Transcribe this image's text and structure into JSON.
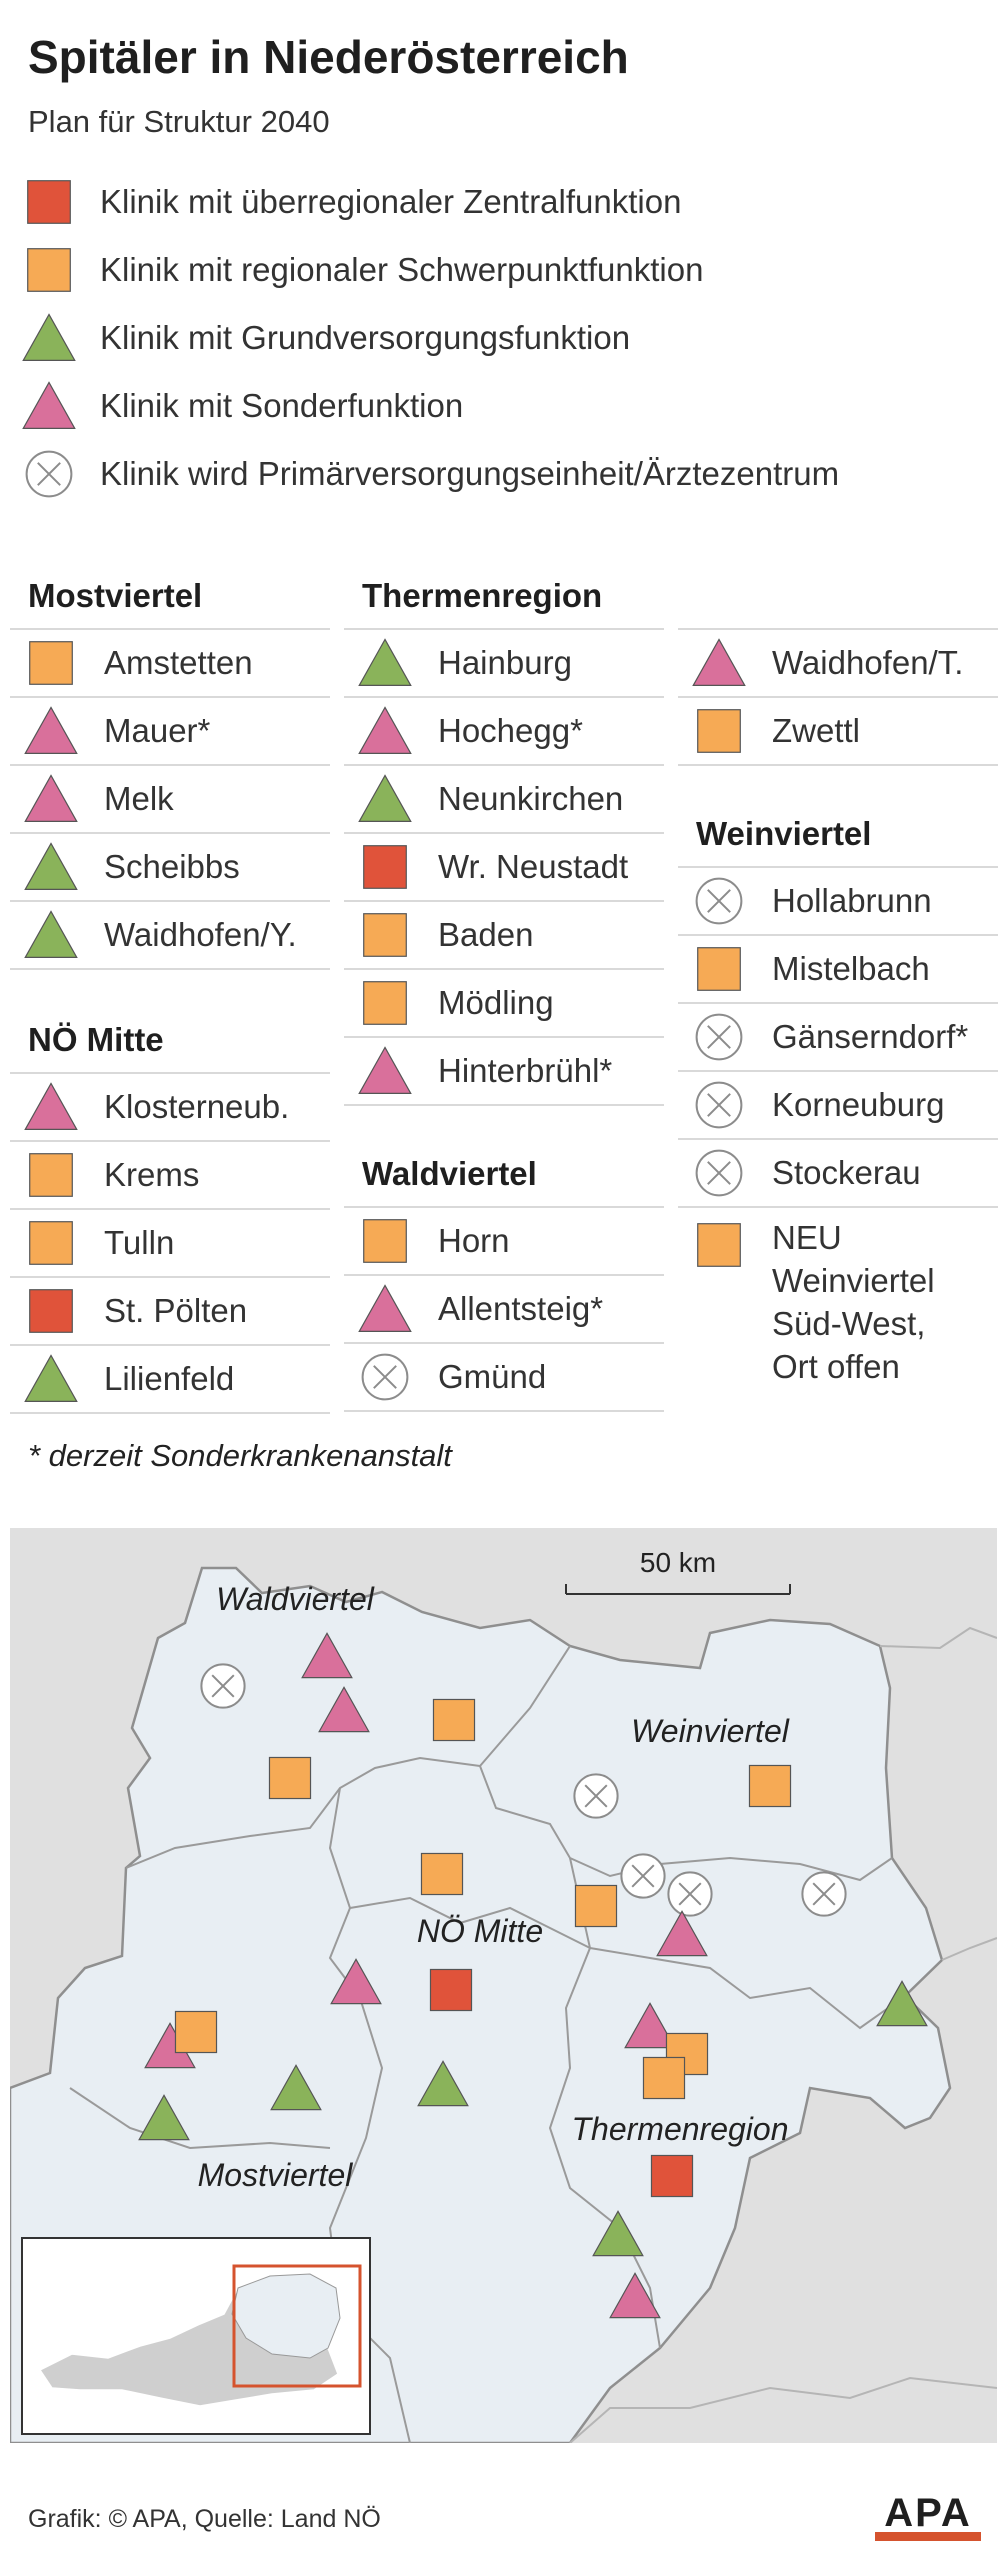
{
  "title": "Spitäler in Niederösterreich",
  "subtitle": "Plan für Struktur 2040",
  "colors": {
    "zentral": "#e0533a",
    "regional": "#f6aa55",
    "grund": "#8ab35a",
    "sonder": "#d9709b",
    "pve_stroke": "#8c8c8c",
    "map_region": "#e8eef3",
    "map_background": "#e0e0e0",
    "map_border": "#8f8f8f"
  },
  "legend": [
    {
      "symbol": "zentral",
      "label": "Klinik mit überregionaler Zentralfunktion"
    },
    {
      "symbol": "regional",
      "label": "Klinik mit regionaler Schwerpunktfunktion"
    },
    {
      "symbol": "grund",
      "label": "Klinik mit Grundversorgungsfunktion"
    },
    {
      "symbol": "sonder",
      "label": "Klinik mit Sonderfunktion"
    },
    {
      "symbol": "pve",
      "label": "Klinik wird Primärversorgungseinheit/Ärztezentrum"
    }
  ],
  "regions": {
    "mostviertel": {
      "name": "Mostviertel",
      "items": [
        {
          "symbol": "regional",
          "label": "Amstetten"
        },
        {
          "symbol": "sonder",
          "label": "Mauer*"
        },
        {
          "symbol": "sonder",
          "label": "Melk"
        },
        {
          "symbol": "grund",
          "label": "Scheibbs"
        },
        {
          "symbol": "grund",
          "label": "Waidhofen/Y."
        }
      ]
    },
    "noe_mitte": {
      "name": "NÖ Mitte",
      "items": [
        {
          "symbol": "sonder",
          "label": "Klosterneub."
        },
        {
          "symbol": "regional",
          "label": "Krems"
        },
        {
          "symbol": "regional",
          "label": "Tulln"
        },
        {
          "symbol": "zentral",
          "label": "St. Pölten"
        },
        {
          "symbol": "grund",
          "label": "Lilienfeld"
        }
      ]
    },
    "thermenregion": {
      "name": "Thermenregion",
      "items": [
        {
          "symbol": "grund",
          "label": "Hainburg"
        },
        {
          "symbol": "sonder",
          "label": "Hochegg*"
        },
        {
          "symbol": "grund",
          "label": "Neunkirchen"
        },
        {
          "symbol": "zentral",
          "label": "Wr. Neustadt"
        },
        {
          "symbol": "regional",
          "label": "Baden"
        },
        {
          "symbol": "regional",
          "label": "Mödling"
        },
        {
          "symbol": "sonder",
          "label": "Hinterbrühl*"
        }
      ]
    },
    "waldviertel": {
      "name": "Waldviertel",
      "items": [
        {
          "symbol": "regional",
          "label": "Horn"
        },
        {
          "symbol": "sonder",
          "label": "Allentsteig*"
        },
        {
          "symbol": "pve",
          "label": "Gmünd"
        },
        {
          "symbol": "sonder",
          "label": "Waidhofen/T."
        },
        {
          "symbol": "regional",
          "label": "Zwettl"
        }
      ]
    },
    "weinviertel": {
      "name": "Weinviertel",
      "items": [
        {
          "symbol": "pve",
          "label": "Hollabrunn"
        },
        {
          "symbol": "regional",
          "label": "Mistelbach"
        },
        {
          "symbol": "pve",
          "label": "Gänserndorf*"
        },
        {
          "symbol": "pve",
          "label": "Korneuburg"
        },
        {
          "symbol": "pve",
          "label": "Stockerau"
        },
        {
          "symbol": "regional",
          "label": "NEU\nWeinviertel\nSüd-West,\nOrt offen"
        }
      ]
    }
  },
  "note": "* derzeit Sonderkrankenanstalt",
  "map": {
    "scale_label": "50 km",
    "region_labels": [
      "Waldviertel",
      "Weinviertel",
      "NÖ Mitte",
      "Thermenregion",
      "Mostviertel"
    ]
  },
  "footer": "Grafik: © APA, Quelle: Land NÖ",
  "logo_text": "APA"
}
